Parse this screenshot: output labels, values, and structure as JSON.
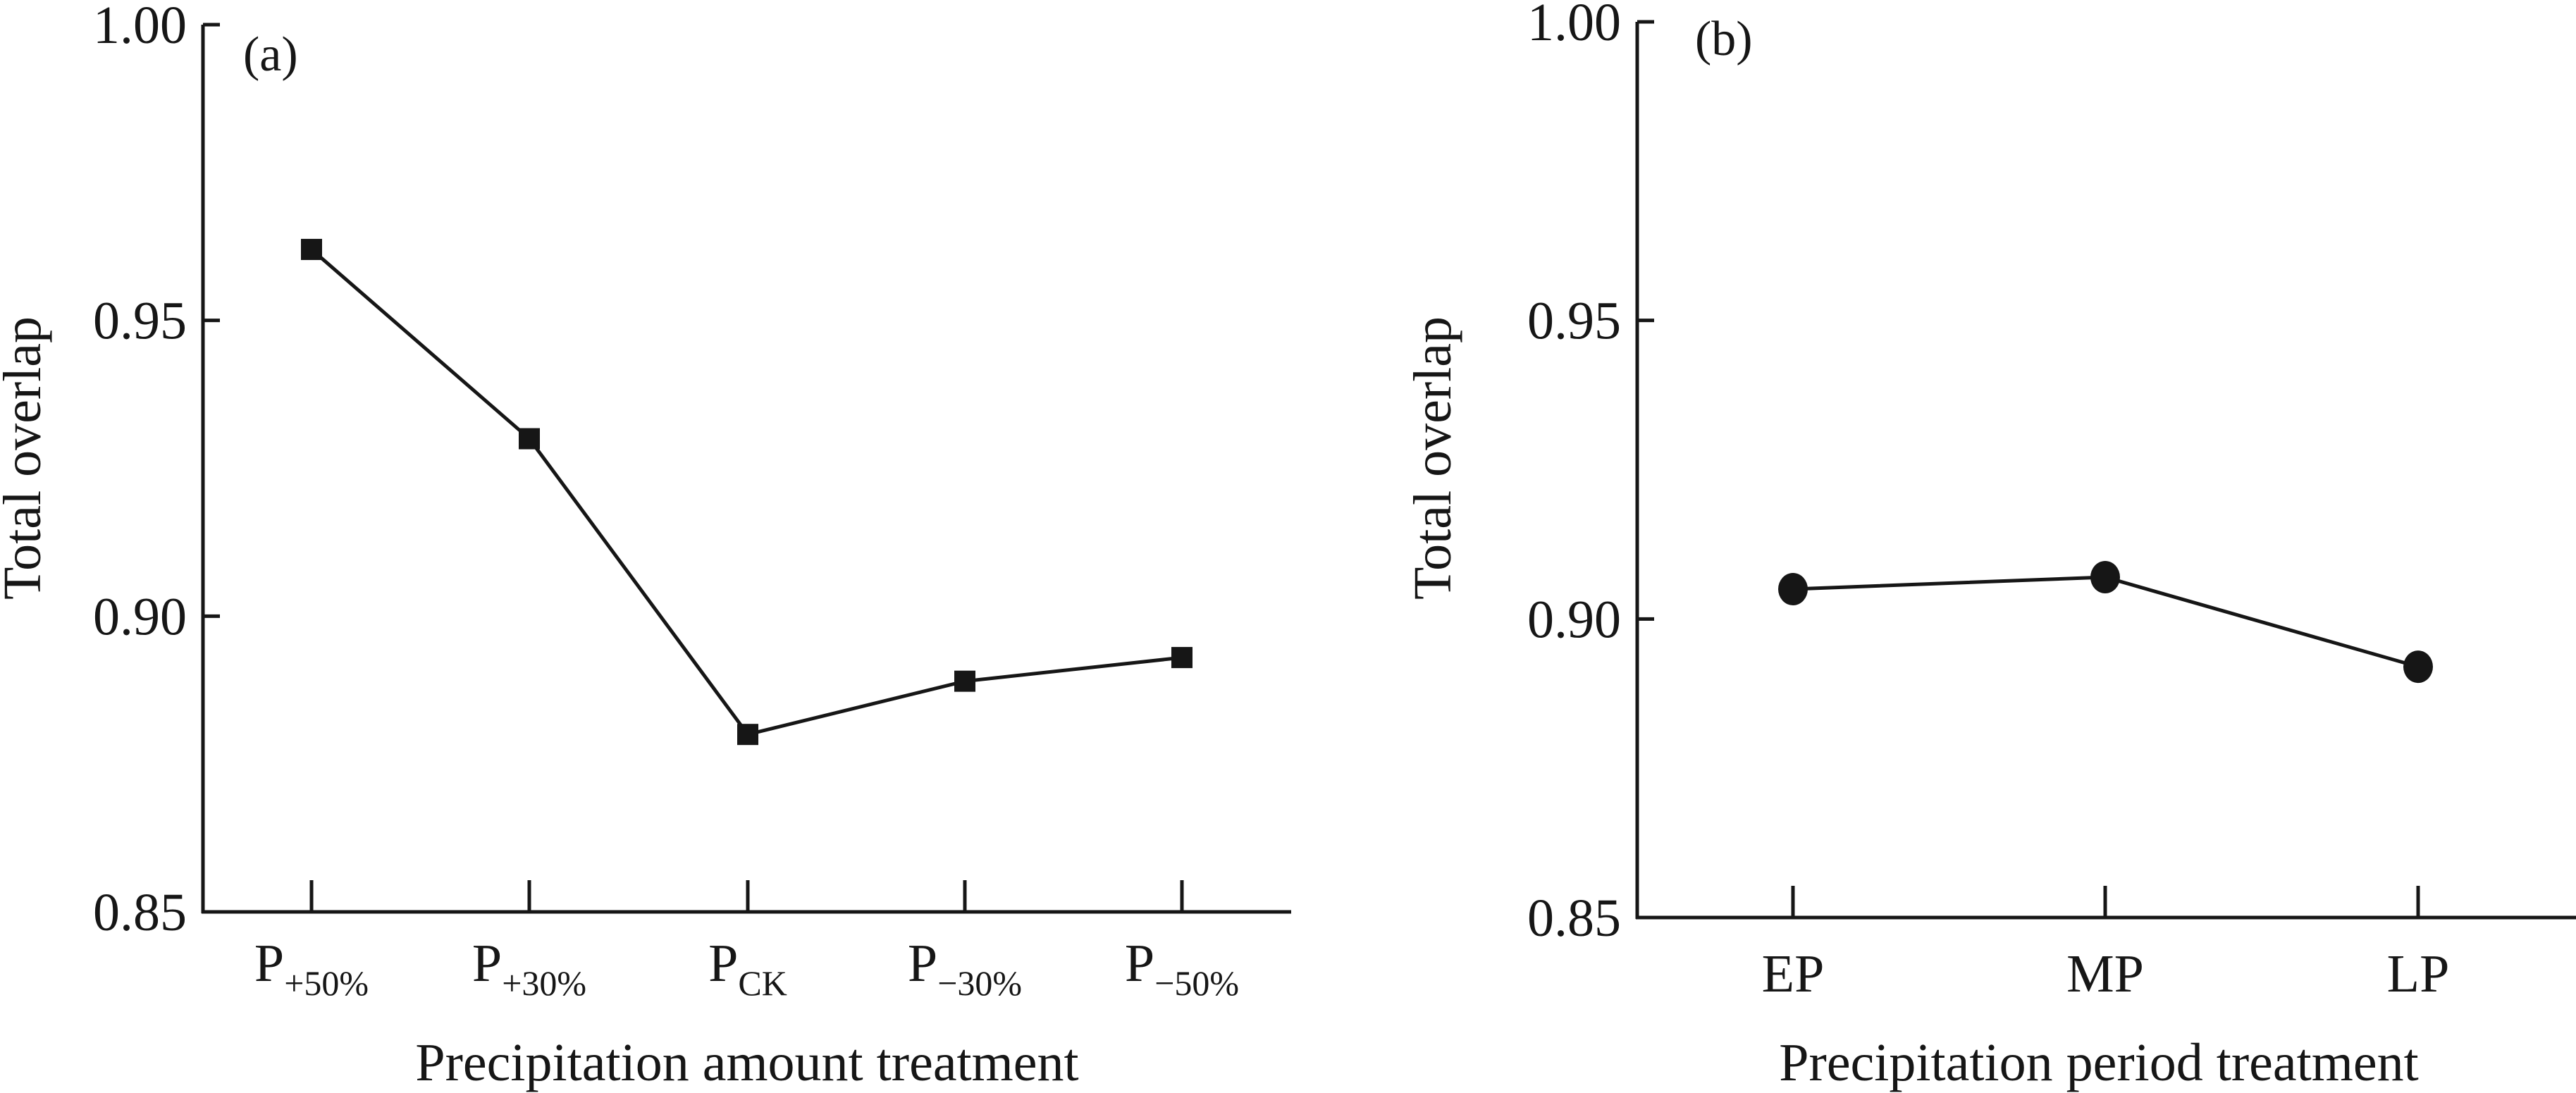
{
  "chart_data": [
    {
      "type": "line",
      "panel_label": "(a)",
      "title": "",
      "xlabel": "Precipitation amount treatment",
      "ylabel": "Total overlap",
      "ylim": [
        0.85,
        1.0
      ],
      "yticks": [
        0.85,
        0.9,
        0.95,
        1.0
      ],
      "ytick_labels": [
        "0.85",
        "0.90",
        "0.95",
        "1.00"
      ],
      "grid": false,
      "legend": "none",
      "marker": "square",
      "categories": [
        {
          "main": "P",
          "sub": "+50%"
        },
        {
          "main": "P",
          "sub": "+30%"
        },
        {
          "main": "P",
          "sub": "CK"
        },
        {
          "main": "P",
          "sub": "−30%"
        },
        {
          "main": "P",
          "sub": "−50%"
        }
      ],
      "series": [
        {
          "name": "Total overlap",
          "values": [
            0.962,
            0.93,
            0.88,
            0.889,
            0.893
          ]
        }
      ]
    },
    {
      "type": "line",
      "panel_label": "(b)",
      "title": "",
      "xlabel": "Precipitation period treatment",
      "ylabel": "Total overlap",
      "ylim": [
        0.85,
        1.0
      ],
      "yticks": [
        0.85,
        0.9,
        0.95,
        1.0
      ],
      "ytick_labels": [
        "0.85",
        "0.90",
        "0.95",
        "1.00"
      ],
      "grid": false,
      "legend": "none",
      "marker": "circle",
      "categories": [
        {
          "main": "EP",
          "sub": ""
        },
        {
          "main": "MP",
          "sub": ""
        },
        {
          "main": "LP",
          "sub": ""
        }
      ],
      "series": [
        {
          "name": "Total overlap",
          "values": [
            0.905,
            0.907,
            0.892
          ]
        }
      ]
    }
  ]
}
